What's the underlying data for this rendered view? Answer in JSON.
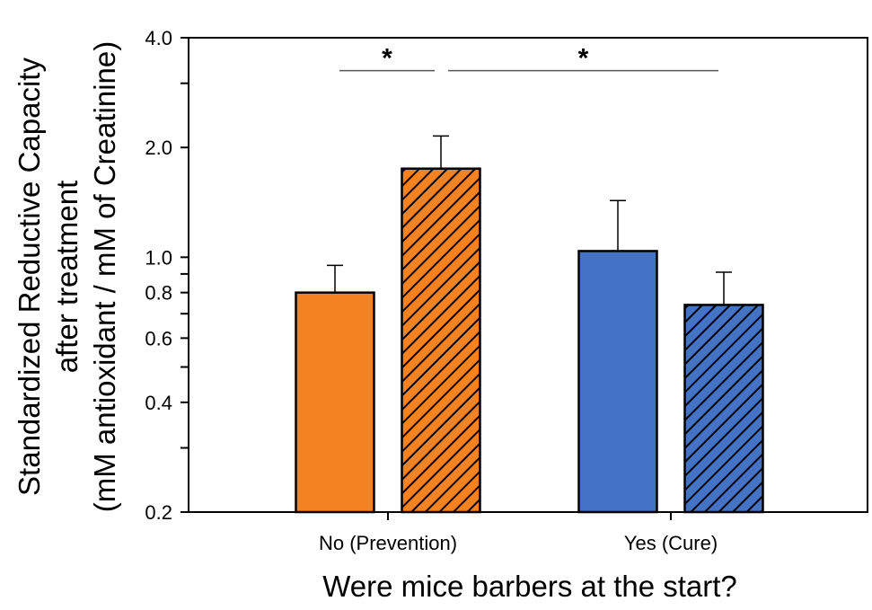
{
  "chart_data": {
    "type": "bar",
    "title": "",
    "xlabel": "Were mice barbers at the start?",
    "ylabel_lines": [
      "Standardized Reductive Capacity",
      "after treatment",
      "(mM antioxidant / mM of Creatinine)"
    ],
    "y_scale": "log",
    "ylim": [
      0.2,
      4.0
    ],
    "y_major_ticks": [
      0.2,
      0.4,
      0.6,
      0.8,
      1.0,
      2.0,
      4.0
    ],
    "y_tick_labels": [
      "0.2",
      "0.4",
      "0.6",
      "0.8",
      "1.0",
      "2.0",
      "4.0"
    ],
    "y_minor_ticks": [
      0.3,
      0.5,
      0.7,
      0.9,
      3.0
    ],
    "categories": [
      "No (Prevention)",
      "Yes (Cure)"
    ],
    "series": [
      {
        "fill": "solid",
        "values": [
          0.8,
          1.04
        ],
        "error_upper": [
          0.95,
          1.43
        ]
      },
      {
        "fill": "hatched",
        "values": [
          1.75,
          0.74
        ],
        "error_upper": [
          2.15,
          0.91
        ]
      }
    ],
    "bar_colors": [
      "#F58220",
      "#4472C4"
    ],
    "edge_color": "#000000",
    "grid": false,
    "legend": "none",
    "significance": [
      {
        "label": "*",
        "y": 3.25
      },
      {
        "label": "*",
        "y": 3.25
      }
    ]
  }
}
